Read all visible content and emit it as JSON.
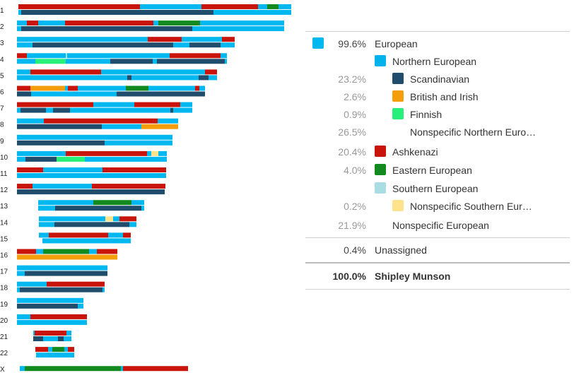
{
  "colors": {
    "european": "#00b8f0",
    "northern": "#00b3ea",
    "scandinavian": "#1f4d6b",
    "british": "#f59e0b",
    "finnish": "#26f07a",
    "ashkenazi": "#c8140a",
    "eastern": "#138a1f",
    "southern": "#a9dde3",
    "nsouthern": "#fde38c"
  },
  "legend": {
    "rows": [
      {
        "pct": "99.6%",
        "label": "European",
        "swatch": "european",
        "level": 0,
        "dark": true
      },
      {
        "pct": "",
        "label": "Northern European",
        "swatch": "northern",
        "level": 1
      },
      {
        "pct": "23.2%",
        "label": "Scandinavian",
        "swatch": "scandinavian",
        "level": 2
      },
      {
        "pct": "2.6%",
        "label": "British and Irish",
        "swatch": "british",
        "level": 2
      },
      {
        "pct": "0.9%",
        "label": "Finnish",
        "swatch": "finnish",
        "level": 2
      },
      {
        "pct": "26.5%",
        "label": "Nonspecific Northern Euro…",
        "swatch": "",
        "level": 2
      },
      {
        "pct": "20.4%",
        "label": "Ashkenazi",
        "swatch": "ashkenazi",
        "level": 1
      },
      {
        "pct": "4.0%",
        "label": "Eastern European",
        "swatch": "eastern",
        "level": 1
      },
      {
        "pct": "",
        "label": "Southern European",
        "swatch": "southern",
        "level": 1
      },
      {
        "pct": "0.2%",
        "label": "Nonspecific Southern Eur…",
        "swatch": "nsouthern",
        "level": 2
      },
      {
        "pct": "21.9%",
        "label": "Nonspecific European",
        "swatch": "",
        "level": 1
      }
    ],
    "unassigned": {
      "pct": "0.4%",
      "label": "Unassigned"
    },
    "total": {
      "pct": "100.0%",
      "label": "Shipley Munson"
    }
  },
  "chromosomes": [
    {
      "label": "1",
      "x": [
        26,
        412
      ],
      "top": [
        [
          26,
          198,
          "ashkenazi"
        ],
        [
          198,
          285,
          "european"
        ],
        [
          285,
          365,
          "ashkenazi"
        ],
        [
          365,
          378,
          "european"
        ],
        [
          378,
          394,
          "eastern"
        ],
        [
          394,
          412,
          "european"
        ]
      ],
      "bottom": [
        [
          26,
          30,
          "european"
        ],
        [
          30,
          302,
          "scandinavian"
        ],
        [
          302,
          412,
          "european"
        ]
      ]
    },
    {
      "label": "2",
      "x": [
        24,
        402
      ],
      "top": [
        [
          24,
          38,
          "european"
        ],
        [
          38,
          54,
          "ashkenazi"
        ],
        [
          54,
          92,
          "european"
        ],
        [
          92,
          217,
          "ashkenazi"
        ],
        [
          217,
          224,
          "european"
        ],
        [
          224,
          283,
          "eastern"
        ],
        [
          283,
          402,
          "european"
        ]
      ],
      "bottom": [
        [
          24,
          30,
          "european"
        ],
        [
          30,
          272,
          "scandinavian"
        ],
        [
          272,
          402,
          "european"
        ]
      ]
    },
    {
      "label": "3",
      "x": [
        24,
        332
      ],
      "top": [
        [
          24,
          209,
          "european"
        ],
        [
          209,
          257,
          "ashkenazi"
        ],
        [
          257,
          314,
          "european"
        ],
        [
          314,
          332,
          "ashkenazi"
        ]
      ],
      "bottom": [
        [
          24,
          46,
          "european"
        ],
        [
          46,
          245,
          "scandinavian"
        ],
        [
          245,
          268,
          "european"
        ],
        [
          268,
          312,
          "scandinavian"
        ],
        [
          312,
          332,
          "european"
        ]
      ]
    },
    {
      "label": "4",
      "x": [
        24,
        321
      ],
      "top": [
        [
          24,
          38,
          "ashkenazi"
        ],
        [
          38,
          93,
          "european"
        ],
        [
          93,
          95,
          "southern"
        ],
        [
          95,
          240,
          "european"
        ],
        [
          240,
          312,
          "ashkenazi"
        ],
        [
          312,
          321,
          "european"
        ]
      ],
      "bottom": [
        [
          24,
          50,
          "european"
        ],
        [
          50,
          93,
          "finnish"
        ],
        [
          93,
          156,
          "european"
        ],
        [
          156,
          216,
          "scandinavian"
        ],
        [
          216,
          222,
          "european"
        ],
        [
          222,
          318,
          "scandinavian"
        ],
        [
          318,
          321,
          "european"
        ]
      ]
    },
    {
      "label": "5",
      "x": [
        24,
        307
      ],
      "top": [
        [
          24,
          43,
          "european"
        ],
        [
          43,
          143,
          "ashkenazi"
        ],
        [
          143,
          290,
          "european"
        ],
        [
          290,
          307,
          "ashkenazi"
        ]
      ],
      "bottom": [
        [
          24,
          180,
          "european"
        ],
        [
          180,
          186,
          "scandinavian"
        ],
        [
          186,
          196,
          "european"
        ],
        [
          196,
          281,
          "european"
        ],
        [
          281,
          295,
          "scandinavian"
        ],
        [
          295,
          307,
          "european"
        ]
      ]
    },
    {
      "label": "6",
      "x": [
        24,
        290
      ],
      "top": [
        [
          24,
          43,
          "ashkenazi"
        ],
        [
          43,
          92,
          "british"
        ],
        [
          92,
          96,
          "european"
        ],
        [
          96,
          110,
          "ashkenazi"
        ],
        [
          110,
          178,
          "european"
        ],
        [
          178,
          210,
          "eastern"
        ],
        [
          210,
          276,
          "european"
        ],
        [
          276,
          282,
          "ashkenazi"
        ],
        [
          282,
          290,
          "european"
        ]
      ],
      "bottom": [
        [
          24,
          44,
          "scandinavian"
        ],
        [
          44,
          165,
          "european"
        ],
        [
          165,
          290,
          "scandinavian"
        ]
      ]
    },
    {
      "label": "7",
      "x": [
        24,
        272
      ],
      "top": [
        [
          24,
          132,
          "ashkenazi"
        ],
        [
          132,
          190,
          "european"
        ],
        [
          190,
          255,
          "ashkenazi"
        ],
        [
          255,
          272,
          "european"
        ]
      ],
      "bottom": [
        [
          24,
          29,
          "european"
        ],
        [
          29,
          65,
          "scandinavian"
        ],
        [
          65,
          75,
          "european"
        ],
        [
          75,
          99,
          "scandinavian"
        ],
        [
          99,
          241,
          "european"
        ],
        [
          241,
          245,
          "scandinavian"
        ],
        [
          245,
          272,
          "european"
        ]
      ]
    },
    {
      "label": "8",
      "x": [
        24,
        252
      ],
      "top": [
        [
          24,
          62,
          "european"
        ],
        [
          62,
          223,
          "ashkenazi"
        ],
        [
          223,
          252,
          "european"
        ]
      ],
      "bottom": [
        [
          24,
          144,
          "scandinavian"
        ],
        [
          144,
          200,
          "european"
        ],
        [
          200,
          252,
          "british"
        ]
      ]
    },
    {
      "label": "9",
      "x": [
        24,
        244
      ],
      "top": [
        [
          24,
          244,
          "european"
        ]
      ],
      "bottom": [
        [
          24,
          148,
          "scandinavian"
        ],
        [
          148,
          244,
          "european"
        ]
      ]
    },
    {
      "label": "10",
      "x": [
        24,
        236
      ],
      "top": [
        [
          24,
          93,
          "european"
        ],
        [
          93,
          208,
          "ashkenazi"
        ],
        [
          208,
          214,
          "european"
        ],
        [
          214,
          224,
          "nsouthern"
        ],
        [
          224,
          236,
          "european"
        ]
      ],
      "bottom": [
        [
          24,
          36,
          "european"
        ],
        [
          36,
          80,
          "scandinavian"
        ],
        [
          80,
          120,
          "finnish"
        ],
        [
          120,
          236,
          "european"
        ]
      ]
    },
    {
      "label": "11",
      "x": [
        24,
        235
      ],
      "top": [
        [
          24,
          61,
          "ashkenazi"
        ],
        [
          61,
          145,
          "european"
        ],
        [
          145,
          235,
          "ashkenazi"
        ]
      ],
      "bottom": [
        [
          24,
          235,
          "european"
        ]
      ]
    },
    {
      "label": "12",
      "x": [
        24,
        234
      ],
      "top": [
        [
          24,
          46,
          "ashkenazi"
        ],
        [
          46,
          50,
          "european"
        ],
        [
          50,
          130,
          "european"
        ],
        [
          130,
          234,
          "ashkenazi"
        ]
      ],
      "bottom": [
        [
          24,
          233,
          "scandinavian"
        ]
      ]
    },
    {
      "label": "13",
      "x": [
        54,
        204
      ],
      "top": [
        [
          54,
          132,
          "european"
        ],
        [
          132,
          186,
          "eastern"
        ],
        [
          186,
          204,
          "european"
        ]
      ],
      "bottom": [
        [
          54,
          78,
          "european"
        ],
        [
          78,
          200,
          "scandinavian"
        ],
        [
          200,
          204,
          "european"
        ]
      ]
    },
    {
      "label": "14",
      "x": [
        55,
        193
      ],
      "top": [
        [
          55,
          149,
          "european"
        ],
        [
          149,
          160,
          "nsouthern"
        ],
        [
          160,
          169,
          "european"
        ],
        [
          169,
          193,
          "ashkenazi"
        ]
      ],
      "bottom": [
        [
          55,
          77,
          "european"
        ],
        [
          77,
          183,
          "scandinavian"
        ],
        [
          183,
          193,
          "european"
        ]
      ]
    },
    {
      "label": "15",
      "x": [
        55,
        185
      ],
      "top": [
        [
          55,
          69,
          "european"
        ],
        [
          69,
          153,
          "ashkenazi"
        ],
        [
          153,
          174,
          "european"
        ],
        [
          174,
          185,
          "ashkenazi"
        ]
      ],
      "bottom": [
        [
          60,
          185,
          "european"
        ]
      ]
    },
    {
      "label": "16",
      "x": [
        24,
        166
      ],
      "top": [
        [
          24,
          51,
          "ashkenazi"
        ],
        [
          51,
          61,
          "european"
        ],
        [
          61,
          126,
          "eastern"
        ],
        [
          126,
          137,
          "european"
        ],
        [
          137,
          166,
          "ashkenazi"
        ]
      ],
      "bottom": [
        [
          24,
          166,
          "british"
        ]
      ]
    },
    {
      "label": "17",
      "x": [
        24,
        152
      ],
      "top": [
        [
          24,
          152,
          "european"
        ]
      ],
      "bottom": [
        [
          24,
          35,
          "european"
        ],
        [
          35,
          152,
          "scandinavian"
        ]
      ]
    },
    {
      "label": "18",
      "x": [
        24,
        148
      ],
      "top": [
        [
          24,
          66,
          "european"
        ],
        [
          66,
          148,
          "ashkenazi"
        ]
      ],
      "bottom": [
        [
          24,
          28,
          "european"
        ],
        [
          28,
          145,
          "scandinavian"
        ],
        [
          145,
          148,
          "european"
        ]
      ]
    },
    {
      "label": "19",
      "x": [
        24,
        118
      ],
      "top": [
        [
          24,
          118,
          "european"
        ]
      ],
      "bottom": [
        [
          24,
          110,
          "scandinavian"
        ],
        [
          110,
          118,
          "european"
        ]
      ]
    },
    {
      "label": "20",
      "x": [
        24,
        123
      ],
      "top": [
        [
          24,
          43,
          "european"
        ],
        [
          43,
          123,
          "ashkenazi"
        ]
      ],
      "bottom": [
        [
          24,
          123,
          "european"
        ]
      ]
    },
    {
      "label": "21",
      "x": [
        47,
        101
      ],
      "top": [
        [
          47,
          49,
          "european"
        ],
        [
          49,
          94,
          "ashkenazi"
        ],
        [
          94,
          101,
          "european"
        ]
      ],
      "bottom": [
        [
          47,
          61,
          "scandinavian"
        ],
        [
          61,
          82,
          "european"
        ],
        [
          82,
          90,
          "scandinavian"
        ],
        [
          90,
          101,
          "european"
        ]
      ]
    },
    {
      "label": "22",
      "x": [
        50,
        105
      ],
      "top": [
        [
          50,
          68,
          "ashkenazi"
        ],
        [
          68,
          74,
          "european"
        ],
        [
          74,
          91,
          "eastern"
        ],
        [
          91,
          96,
          "european"
        ],
        [
          96,
          105,
          "ashkenazi"
        ]
      ],
      "bottom": [
        [
          51,
          105,
          "european"
        ]
      ]
    },
    {
      "label": "X",
      "x": [
        28,
        266
      ],
      "single": true,
      "top": [
        [
          28,
          35,
          "european"
        ],
        [
          35,
          171,
          "eastern"
        ],
        [
          171,
          174,
          "european"
        ],
        [
          174,
          266,
          "ashkenazi"
        ]
      ],
      "bottom": []
    }
  ]
}
